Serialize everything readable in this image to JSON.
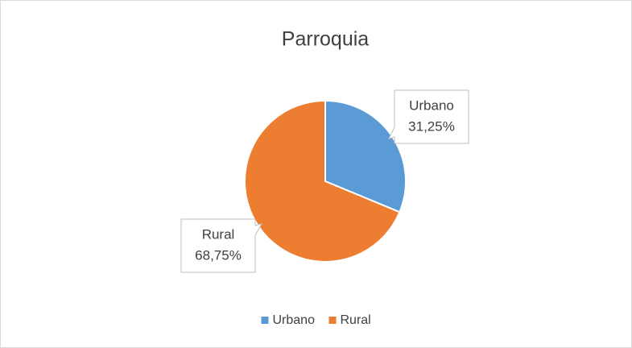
{
  "chart_data": {
    "type": "pie",
    "title": "Parroquia",
    "categories": [
      "Urbano",
      "Rural"
    ],
    "values": [
      31.25,
      68.75
    ],
    "value_labels": [
      "31,25%",
      "68,75%"
    ],
    "colors": [
      "#5b9bd5",
      "#ed7d31"
    ],
    "legend": "bottom"
  }
}
